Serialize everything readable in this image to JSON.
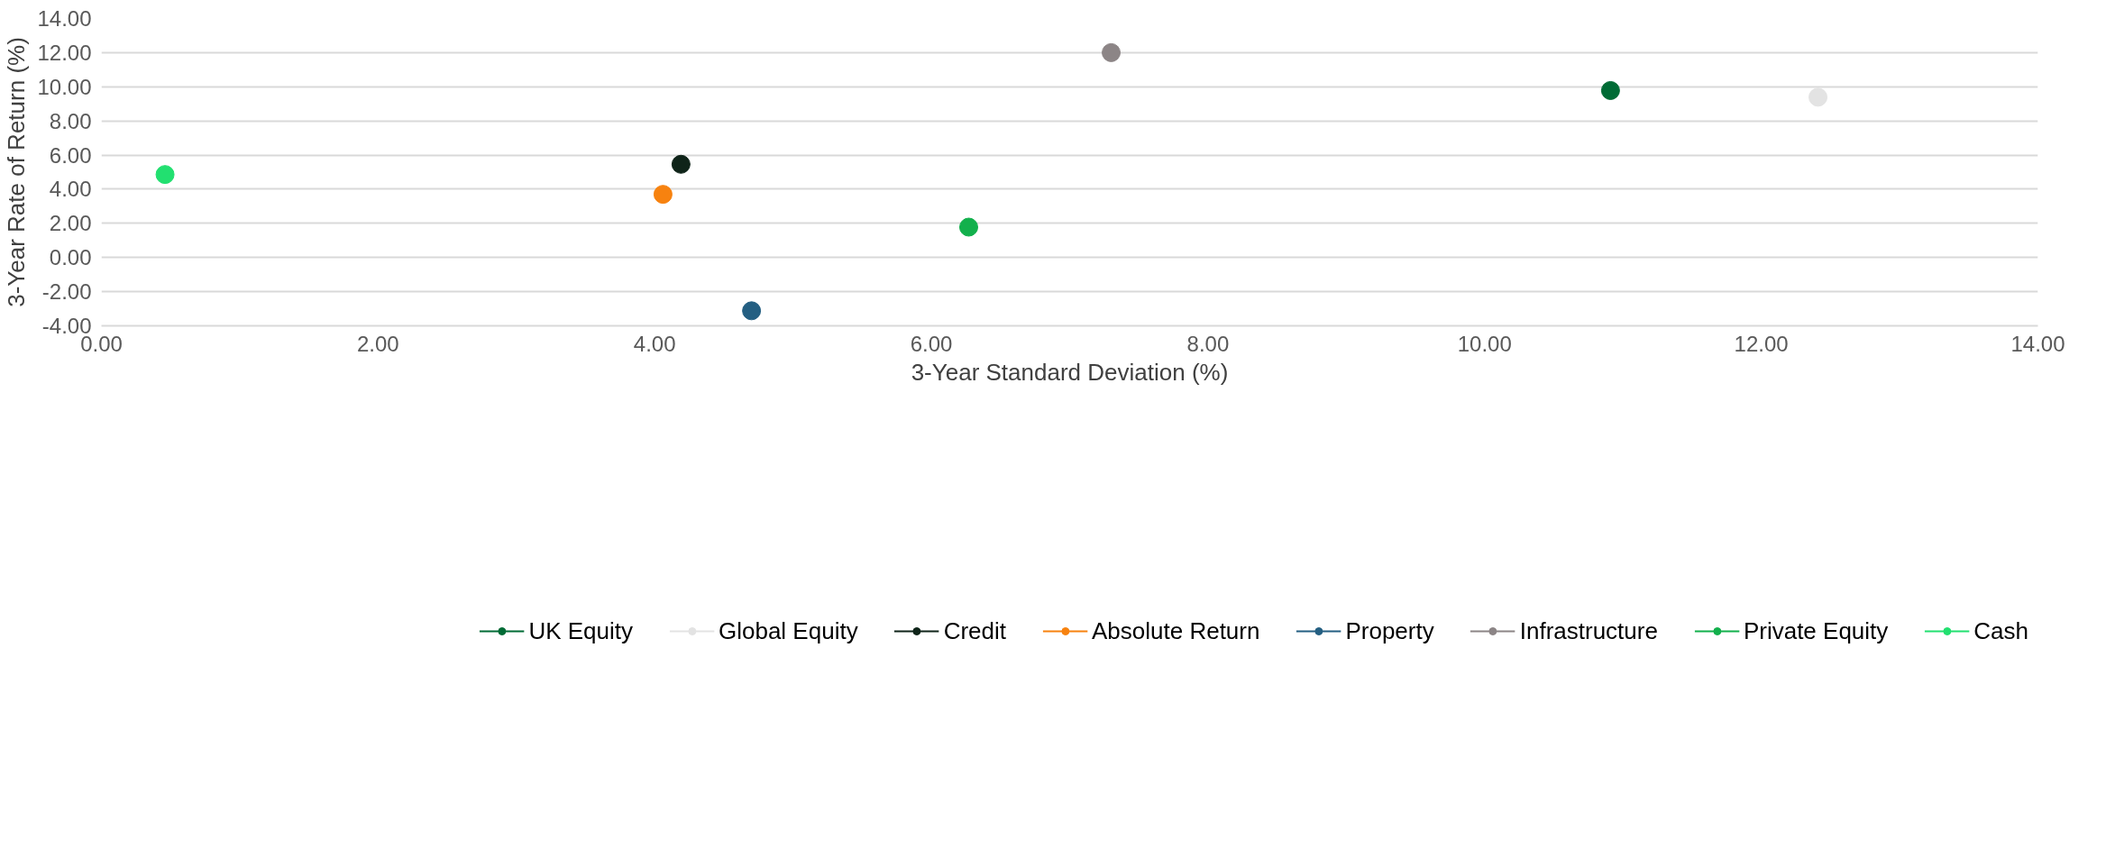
{
  "chart_data": {
    "type": "scatter",
    "xlabel": "3-Year Standard Deviation (%)",
    "ylabel": "3-Year Rate of Return (%)",
    "series": [
      {
        "name": "UK Equity",
        "color": "#006b35",
        "x": [
          10.91
        ],
        "values": [
          9.78
        ]
      },
      {
        "name": "Global Equity",
        "color": "#e3e3e3",
        "x": [
          12.41
        ],
        "values": [
          9.39
        ]
      },
      {
        "name": "Credit",
        "color": "#0f2419",
        "x": [
          4.19
        ],
        "values": [
          5.46
        ]
      },
      {
        "name": "Absolute Return",
        "color": "#f7820f",
        "x": [
          4.06
        ],
        "values": [
          3.7
        ]
      },
      {
        "name": "Property",
        "color": "#245f82",
        "x": [
          4.7
        ],
        "values": [
          -3.12
        ]
      },
      {
        "name": "Infrastructure",
        "color": "#8c8586",
        "x": [
          7.3
        ],
        "values": [
          12.0
        ]
      },
      {
        "name": "Private Equity",
        "color": "#12b04c",
        "x": [
          6.27
        ],
        "values": [
          1.78
        ]
      },
      {
        "name": "Cash",
        "color": "#22e070",
        "x": [
          0.46
        ],
        "values": [
          4.86
        ]
      }
    ],
    "xlim": [
      0,
      14
    ],
    "ylim": [
      -4,
      14
    ],
    "xticks": [
      {
        "value": 0,
        "label": "0.00"
      },
      {
        "value": 2,
        "label": "2.00"
      },
      {
        "value": 4,
        "label": "4.00"
      },
      {
        "value": 6,
        "label": "6.00"
      },
      {
        "value": 8,
        "label": "8.00"
      },
      {
        "value": 10,
        "label": "10.00"
      },
      {
        "value": 12,
        "label": "12.00"
      },
      {
        "value": 14,
        "label": "14.00"
      }
    ],
    "yticks": [
      {
        "value": -4,
        "label": "-4.00"
      },
      {
        "value": -2,
        "label": "-2.00"
      },
      {
        "value": 0,
        "label": "0.00"
      },
      {
        "value": 2,
        "label": "2.00"
      },
      {
        "value": 4,
        "label": "4.00"
      },
      {
        "value": 6,
        "label": "6.00"
      },
      {
        "value": 8,
        "label": "8.00"
      },
      {
        "value": 10,
        "label": "10.00"
      },
      {
        "value": 12,
        "label": "12.00"
      },
      {
        "value": 14,
        "label": "14.00"
      }
    ],
    "grid": "y",
    "legend": "bottom",
    "marker": "circle"
  }
}
